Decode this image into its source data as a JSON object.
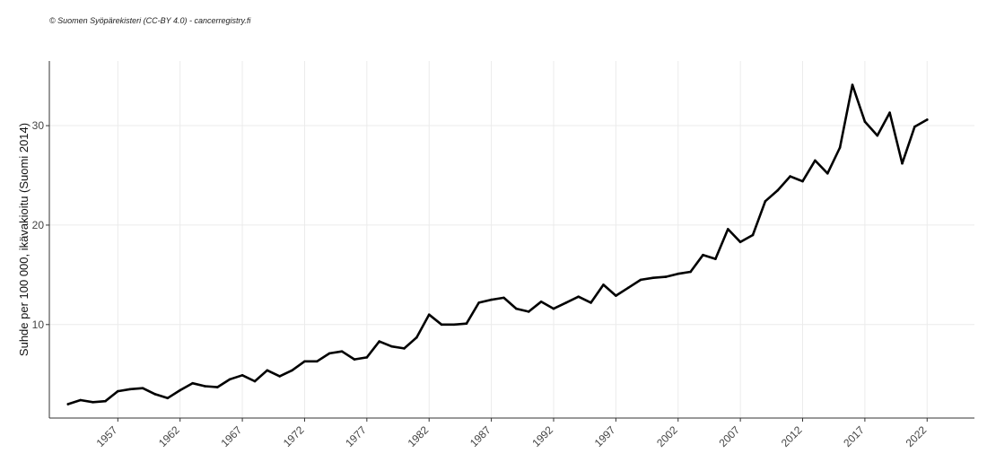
{
  "credit": "© Suomen Syöpärekisteri (CC-BY 4.0) - cancerregistry.fi",
  "chart_data": {
    "type": "line",
    "title": "",
    "xlabel": "",
    "ylabel": "Suhde per 100 000, ikävakioitu (Suomi 2014)",
    "x_ticks": [
      1957,
      1962,
      1967,
      1972,
      1977,
      1982,
      1987,
      1992,
      1997,
      2002,
      2007,
      2012,
      2017,
      2022
    ],
    "y_ticks": [
      10,
      20,
      30
    ],
    "xlim": [
      1951.5,
      2025.8
    ],
    "ylim": [
      0.6,
      36.5
    ],
    "grid": true,
    "legend": "none",
    "line_color": "#000000",
    "series": [
      {
        "x": [
          1953,
          1954,
          1955,
          1956,
          1957,
          1958,
          1959,
          1960,
          1961,
          1962,
          1963,
          1964,
          1965,
          1966,
          1967,
          1968,
          1969,
          1970,
          1971,
          1972,
          1973,
          1974,
          1975,
          1976,
          1977,
          1978,
          1979,
          1980,
          1981,
          1982,
          1983,
          1984,
          1985,
          1986,
          1987,
          1988,
          1989,
          1990,
          1991,
          1992,
          1993,
          1994,
          1995,
          1996,
          1997,
          1998,
          1999,
          2000,
          2001,
          2002,
          2003,
          2004,
          2005,
          2006,
          2007,
          2008,
          2009,
          2010,
          2011,
          2012,
          2013,
          2014,
          2015,
          2016,
          2017,
          2018,
          2019,
          2020,
          2021,
          2022
        ],
        "values": [
          2.0,
          2.4,
          2.2,
          2.3,
          3.3,
          3.5,
          3.6,
          3.0,
          2.6,
          3.4,
          4.1,
          3.8,
          3.7,
          4.5,
          4.9,
          4.3,
          5.4,
          4.8,
          5.4,
          6.3,
          6.3,
          7.1,
          7.3,
          6.5,
          6.7,
          8.3,
          7.8,
          7.6,
          8.7,
          11.0,
          10.0,
          10.0,
          10.1,
          12.2,
          12.5,
          12.7,
          11.6,
          11.3,
          12.3,
          11.6,
          12.2,
          12.8,
          12.2,
          14.0,
          12.9,
          13.7,
          14.5,
          14.7,
          14.8,
          15.1,
          15.3,
          17.0,
          16.6,
          19.6,
          18.3,
          19.0,
          22.4,
          23.5,
          24.9,
          24.4,
          26.5,
          25.2,
          27.8,
          34.1,
          30.4,
          29.0,
          31.3,
          26.2,
          29.9,
          30.6
        ]
      }
    ]
  }
}
